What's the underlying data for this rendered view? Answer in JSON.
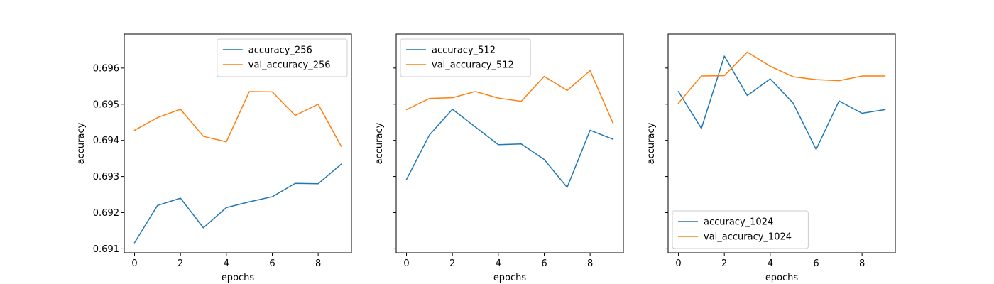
{
  "chart_data": [
    {
      "type": "line",
      "xlabel": "epochs",
      "ylabel": "accuracy",
      "x": [
        0,
        1,
        2,
        3,
        4,
        5,
        6,
        7,
        8,
        9
      ],
      "xlim": [
        -0.45,
        9.45
      ],
      "ylim": [
        0.69089,
        0.69694
      ],
      "xticks": [
        0,
        2,
        4,
        6,
        8
      ],
      "yticks": [
        0.691,
        0.692,
        0.693,
        0.694,
        0.695,
        0.696
      ],
      "ytick_labels": [
        "0.691",
        "0.692",
        "0.693",
        "0.694",
        "0.695",
        "0.696"
      ],
      "legend_position": "top-right",
      "series": [
        {
          "name": "accuracy_256",
          "color": "#1f77b4",
          "values": [
            0.69117,
            0.6922,
            0.6924,
            0.69158,
            0.69214,
            0.6923,
            0.69244,
            0.69281,
            0.6928,
            0.69334
          ]
        },
        {
          "name": "val_accuracy_256",
          "color": "#ff7f0e",
          "values": [
            0.69428,
            0.69463,
            0.69486,
            0.69411,
            0.69396,
            0.69535,
            0.69534,
            0.69469,
            0.695,
            0.69384
          ]
        }
      ]
    },
    {
      "type": "line",
      "xlabel": "epochs",
      "ylabel": "accuracy",
      "x": [
        0,
        1,
        2,
        3,
        4,
        5,
        6,
        7,
        8,
        9
      ],
      "xlim": [
        -0.45,
        9.45
      ],
      "ylim": [
        0.69089,
        0.69694
      ],
      "xticks": [
        0,
        2,
        4,
        6,
        8
      ],
      "yticks": [
        0.691,
        0.692,
        0.693,
        0.694,
        0.695,
        0.696
      ],
      "ytick_labels": [
        "",
        "",
        "",
        "",
        "",
        ""
      ],
      "legend_position": "top-left",
      "series": [
        {
          "name": "accuracy_512",
          "color": "#1f77b4",
          "values": [
            0.69292,
            0.69415,
            0.69486,
            0.69437,
            0.69388,
            0.6939,
            0.69347,
            0.6927,
            0.69428,
            0.69403
          ]
        },
        {
          "name": "val_accuracy_512",
          "color": "#ff7f0e",
          "values": [
            0.69485,
            0.69516,
            0.69518,
            0.69535,
            0.69517,
            0.69508,
            0.69577,
            0.69538,
            0.69593,
            0.69447
          ]
        }
      ]
    },
    {
      "type": "line",
      "xlabel": "epochs",
      "ylabel": "accuracy",
      "x": [
        0,
        1,
        2,
        3,
        4,
        5,
        6,
        7,
        8,
        9
      ],
      "xlim": [
        -0.45,
        9.45
      ],
      "ylim": [
        0.69089,
        0.69694
      ],
      "xticks": [
        0,
        2,
        4,
        6,
        8
      ],
      "yticks": [
        0.691,
        0.692,
        0.693,
        0.694,
        0.695,
        0.696
      ],
      "ytick_labels": [
        "",
        "",
        "",
        "",
        "",
        ""
      ],
      "legend_position": "lower-left",
      "series": [
        {
          "name": "accuracy_1024",
          "color": "#1f77b4",
          "values": [
            0.69535,
            0.69433,
            0.69633,
            0.69524,
            0.6957,
            0.69503,
            0.69375,
            0.69509,
            0.69475,
            0.69485
          ]
        },
        {
          "name": "val_accuracy_1024",
          "color": "#ff7f0e",
          "values": [
            0.69503,
            0.69578,
            0.69579,
            0.69644,
            0.69605,
            0.69576,
            0.69568,
            0.69565,
            0.69578,
            0.69578
          ]
        }
      ]
    }
  ]
}
